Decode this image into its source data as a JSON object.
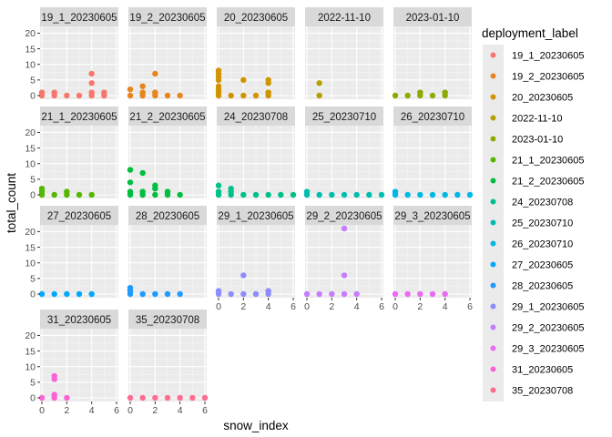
{
  "chart_data": {
    "type": "scatter",
    "facet": "deployment_label",
    "xlabel": "snow_index",
    "ylabel": "total_count",
    "xlim": [
      0,
      6
    ],
    "ylim": [
      0,
      21
    ],
    "x_ticks": [
      0,
      2,
      4,
      6
    ],
    "y_ticks": [
      0,
      5,
      10,
      15,
      20
    ],
    "grid": true,
    "legend": {
      "title": "deployment_label",
      "position": "right"
    },
    "panels": [
      {
        "label": "19_1_20230605",
        "color": "#F8766D",
        "points": [
          [
            0,
            0
          ],
          [
            0,
            1
          ],
          [
            1,
            0
          ],
          [
            1,
            1
          ],
          [
            2,
            0
          ],
          [
            3,
            0
          ],
          [
            4,
            0
          ],
          [
            4,
            1
          ],
          [
            4,
            4
          ],
          [
            4,
            7
          ],
          [
            5,
            0
          ],
          [
            5,
            1
          ]
        ]
      },
      {
        "label": "19_2_20230605",
        "color": "#E7851E",
        "points": [
          [
            0,
            0
          ],
          [
            0,
            2
          ],
          [
            1,
            0
          ],
          [
            1,
            1
          ],
          [
            1,
            3
          ],
          [
            2,
            0
          ],
          [
            2,
            1
          ],
          [
            2,
            7
          ],
          [
            3,
            0
          ],
          [
            4,
            0
          ]
        ]
      },
      {
        "label": "20_20230605",
        "color": "#D09400",
        "points": [
          [
            0,
            0
          ],
          [
            0,
            1
          ],
          [
            0,
            2
          ],
          [
            0,
            3
          ],
          [
            0,
            5
          ],
          [
            0,
            6
          ],
          [
            0,
            7
          ],
          [
            0,
            8
          ],
          [
            1,
            0
          ],
          [
            2,
            0
          ],
          [
            2,
            5
          ],
          [
            3,
            0
          ],
          [
            4,
            0
          ],
          [
            4,
            1
          ],
          [
            4,
            4
          ],
          [
            4,
            5
          ]
        ]
      },
      {
        "label": "2022-11-10",
        "color": "#B2A100",
        "points": [
          [
            1,
            0
          ],
          [
            1,
            4
          ]
        ]
      },
      {
        "label": "2023-01-10",
        "color": "#8BAB00",
        "points": [
          [
            0,
            0
          ],
          [
            1,
            0
          ],
          [
            2,
            0
          ],
          [
            2,
            1
          ],
          [
            3,
            0
          ],
          [
            4,
            0
          ],
          [
            4,
            1
          ]
        ]
      },
      {
        "label": "21_1_20230605",
        "color": "#55B700",
        "points": [
          [
            0,
            0
          ],
          [
            0,
            1
          ],
          [
            0,
            2
          ],
          [
            1,
            0
          ],
          [
            2,
            0
          ],
          [
            2,
            1
          ],
          [
            3,
            0
          ],
          [
            4,
            0
          ]
        ]
      },
      {
        "label": "21_2_20230605",
        "color": "#00BE40",
        "points": [
          [
            0,
            0
          ],
          [
            0,
            1
          ],
          [
            0,
            4
          ],
          [
            0,
            8
          ],
          [
            1,
            0
          ],
          [
            1,
            1
          ],
          [
            1,
            7
          ],
          [
            2,
            0
          ],
          [
            2,
            2
          ],
          [
            2,
            3
          ],
          [
            3,
            0
          ],
          [
            3,
            1
          ],
          [
            4,
            0
          ]
        ]
      },
      {
        "label": "24_20230708",
        "color": "#00C08B",
        "points": [
          [
            0,
            0
          ],
          [
            0,
            1
          ],
          [
            0,
            3
          ],
          [
            1,
            0
          ],
          [
            1,
            1
          ],
          [
            1,
            2
          ],
          [
            2,
            0
          ],
          [
            3,
            0
          ],
          [
            4,
            0
          ],
          [
            5,
            0
          ],
          [
            6,
            0
          ]
        ]
      },
      {
        "label": "25_20230710",
        "color": "#00BDB0",
        "points": [
          [
            0,
            0
          ],
          [
            0,
            1
          ],
          [
            1,
            0
          ],
          [
            2,
            0
          ],
          [
            3,
            0
          ],
          [
            4,
            0
          ],
          [
            5,
            0
          ],
          [
            6,
            0
          ]
        ]
      },
      {
        "label": "26_20230710",
        "color": "#00B8E5",
        "points": [
          [
            0,
            0
          ],
          [
            0,
            1
          ],
          [
            1,
            0
          ],
          [
            2,
            0
          ],
          [
            3,
            0
          ],
          [
            4,
            0
          ],
          [
            5,
            0
          ],
          [
            6,
            0
          ]
        ]
      },
      {
        "label": "27_20230605",
        "color": "#00A9FF",
        "points": [
          [
            0,
            0
          ],
          [
            1,
            0
          ],
          [
            2,
            0
          ],
          [
            3,
            0
          ],
          [
            4,
            0
          ]
        ]
      },
      {
        "label": "28_20230605",
        "color": "#1F9AFF",
        "points": [
          [
            0,
            0
          ],
          [
            0,
            1
          ],
          [
            0,
            2
          ],
          [
            1,
            0
          ],
          [
            2,
            0
          ],
          [
            3,
            0
          ],
          [
            4,
            0
          ]
        ]
      },
      {
        "label": "29_1_20230605",
        "color": "#8C8CFF",
        "points": [
          [
            0,
            0
          ],
          [
            0,
            1
          ],
          [
            1,
            0
          ],
          [
            2,
            0
          ],
          [
            2,
            6
          ],
          [
            3,
            0
          ],
          [
            4,
            0
          ],
          [
            4,
            1
          ]
        ]
      },
      {
        "label": "29_2_20230605",
        "color": "#C77CFF",
        "points": [
          [
            0,
            0
          ],
          [
            1,
            0
          ],
          [
            2,
            0
          ],
          [
            3,
            0
          ],
          [
            3,
            6
          ],
          [
            3,
            21
          ],
          [
            4,
            0
          ]
        ]
      },
      {
        "label": "29_3_20230605",
        "color": "#EA6AF1",
        "points": [
          [
            0,
            0
          ],
          [
            1,
            0
          ],
          [
            2,
            0
          ],
          [
            3,
            0
          ],
          [
            4,
            0
          ]
        ]
      },
      {
        "label": "31_20230605",
        "color": "#FC61D5",
        "points": [
          [
            0,
            0
          ],
          [
            1,
            0
          ],
          [
            1,
            1
          ],
          [
            1,
            6
          ],
          [
            1,
            7
          ],
          [
            2,
            0
          ]
        ]
      },
      {
        "label": "35_20230708",
        "color": "#FF6C91",
        "points": [
          [
            0,
            0
          ],
          [
            1,
            0
          ],
          [
            2,
            0
          ],
          [
            3,
            0
          ],
          [
            4,
            0
          ],
          [
            5,
            0
          ],
          [
            6,
            0
          ]
        ]
      }
    ]
  }
}
